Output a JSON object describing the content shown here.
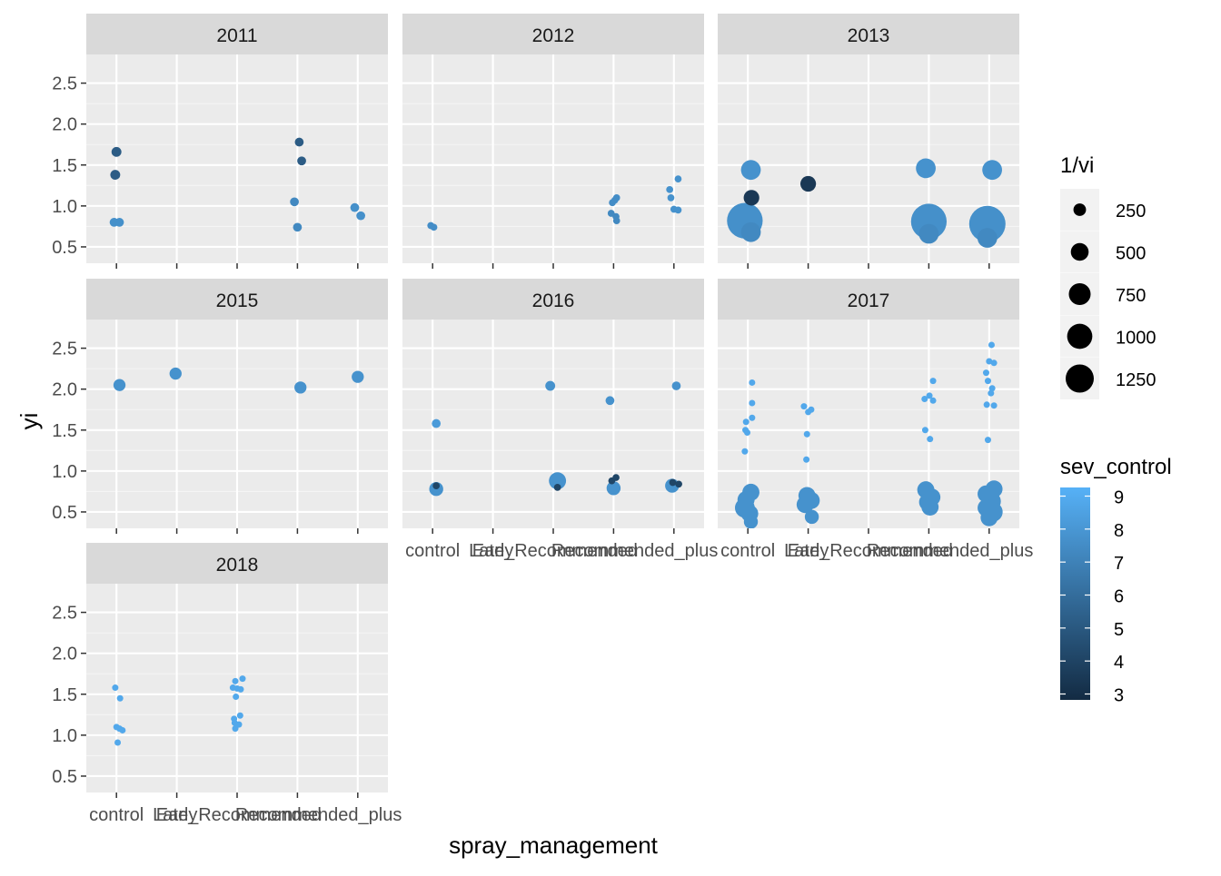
{
  "chart_data": {
    "type": "scatter",
    "facet_by": "year",
    "xlabel": "spray_management",
    "ylabel": "yi",
    "categories": [
      "control",
      "Early",
      "Late",
      "Recommended",
      "Recommended_plus"
    ],
    "tick_labels": [
      "control",
      "Early",
      "Late_Recommended",
      "Recommended_plus"
    ],
    "tick_label_style": "overlapping",
    "y_ticks": [
      "0.5",
      "1.0",
      "1.5",
      "2.0",
      "2.5"
    ],
    "ylim": [
      0.3,
      2.85
    ],
    "grid": true,
    "size_legend": {
      "title": "1/vi",
      "values": [
        250,
        500,
        750,
        1000,
        1250
      ],
      "labels": [
        "250",
        "500",
        "750",
        "1000",
        "1250"
      ]
    },
    "color_legend": {
      "title": "sev_control",
      "min": 3,
      "max": 9,
      "labels": [
        "3",
        "4",
        "5",
        "6",
        "7",
        "8",
        "9"
      ],
      "low_color": "#132B43",
      "high_color": "#56B1F7"
    },
    "panels": [
      {
        "title": "2011",
        "points": [
          {
            "x": 0.96,
            "y": 0.8,
            "size": 80,
            "color": 7.5
          },
          {
            "x": 1.05,
            "y": 0.8,
            "size": 80,
            "color": 7.5
          },
          {
            "x": 1.0,
            "y": 1.66,
            "size": 100,
            "color": 5.2
          },
          {
            "x": 0.98,
            "y": 1.38,
            "size": 100,
            "color": 5.2
          },
          {
            "x": 3.95,
            "y": 1.05,
            "size": 80,
            "color": 7.2
          },
          {
            "x": 4.0,
            "y": 0.74,
            "size": 80,
            "color": 7.2
          },
          {
            "x": 4.03,
            "y": 1.78,
            "size": 80,
            "color": 5.2
          },
          {
            "x": 4.07,
            "y": 1.55,
            "size": 80,
            "color": 5.2
          },
          {
            "x": 4.95,
            "y": 0.98,
            "size": 80,
            "color": 7.5
          },
          {
            "x": 5.05,
            "y": 0.88,
            "size": 80,
            "color": 7.5
          }
        ]
      },
      {
        "title": "2012",
        "points": [
          {
            "x": 0.97,
            "y": 0.76,
            "size": 50,
            "color": 7.4
          },
          {
            "x": 1.02,
            "y": 0.74,
            "size": 50,
            "color": 7.4
          },
          {
            "x": 3.96,
            "y": 0.91,
            "size": 50,
            "color": 7.2
          },
          {
            "x": 4.04,
            "y": 0.87,
            "size": 50,
            "color": 7.2
          },
          {
            "x": 4.05,
            "y": 0.82,
            "size": 50,
            "color": 7.2
          },
          {
            "x": 3.98,
            "y": 1.04,
            "size": 50,
            "color": 7.4
          },
          {
            "x": 4.02,
            "y": 1.07,
            "size": 50,
            "color": 7.4
          },
          {
            "x": 4.05,
            "y": 1.1,
            "size": 50,
            "color": 7.4
          },
          {
            "x": 4.93,
            "y": 1.2,
            "size": 50,
            "color": 7.6
          },
          {
            "x": 4.95,
            "y": 1.1,
            "size": 50,
            "color": 7.6
          },
          {
            "x": 5.07,
            "y": 1.33,
            "size": 50,
            "color": 7.6
          },
          {
            "x": 5.0,
            "y": 0.96,
            "size": 50,
            "color": 7.6
          },
          {
            "x": 5.07,
            "y": 0.95,
            "size": 50,
            "color": 7.6
          }
        ]
      },
      {
        "title": "2013",
        "points": [
          {
            "x": 0.95,
            "y": 0.82,
            "size": 1300,
            "color": 7.5
          },
          {
            "x": 1.05,
            "y": 1.44,
            "size": 400,
            "color": 7.6
          },
          {
            "x": 1.06,
            "y": 1.1,
            "size": 250,
            "color": 3.6
          },
          {
            "x": 1.05,
            "y": 0.68,
            "size": 400,
            "color": 7.2
          },
          {
            "x": 2.0,
            "y": 1.27,
            "size": 250,
            "color": 3.6
          },
          {
            "x": 3.95,
            "y": 1.46,
            "size": 400,
            "color": 7.6
          },
          {
            "x": 4.0,
            "y": 0.81,
            "size": 1300,
            "color": 7.5
          },
          {
            "x": 4.0,
            "y": 0.66,
            "size": 400,
            "color": 7.2
          },
          {
            "x": 4.97,
            "y": 0.78,
            "size": 1350,
            "color": 7.5
          },
          {
            "x": 5.05,
            "y": 1.44,
            "size": 400,
            "color": 7.6
          },
          {
            "x": 4.97,
            "y": 0.61,
            "size": 400,
            "color": 7.2
          }
        ]
      },
      {
        "title": "2015",
        "points": [
          {
            "x": 1.05,
            "y": 2.05,
            "size": 150,
            "color": 7.6
          },
          {
            "x": 1.98,
            "y": 2.19,
            "size": 150,
            "color": 7.6
          },
          {
            "x": 4.05,
            "y": 2.02,
            "size": 150,
            "color": 7.6
          },
          {
            "x": 5.0,
            "y": 2.15,
            "size": 150,
            "color": 7.6
          }
        ]
      },
      {
        "title": "2016",
        "points": [
          {
            "x": 1.06,
            "y": 1.58,
            "size": 80,
            "color": 8.0
          },
          {
            "x": 1.06,
            "y": 0.78,
            "size": 200,
            "color": 7.6
          },
          {
            "x": 1.06,
            "y": 0.82,
            "size": 50,
            "color": 4.2
          },
          {
            "x": 2.95,
            "y": 2.04,
            "size": 100,
            "color": 7.6
          },
          {
            "x": 3.07,
            "y": 0.88,
            "size": 300,
            "color": 7.6
          },
          {
            "x": 3.07,
            "y": 0.8,
            "size": 50,
            "color": 4.2
          },
          {
            "x": 3.94,
            "y": 1.86,
            "size": 80,
            "color": 7.6
          },
          {
            "x": 4.0,
            "y": 0.79,
            "size": 200,
            "color": 7.6
          },
          {
            "x": 3.97,
            "y": 0.88,
            "size": 50,
            "color": 4.2
          },
          {
            "x": 4.04,
            "y": 0.92,
            "size": 50,
            "color": 4.2
          },
          {
            "x": 4.97,
            "y": 0.82,
            "size": 200,
            "color": 7.6
          },
          {
            "x": 4.98,
            "y": 0.86,
            "size": 50,
            "color": 4.2
          },
          {
            "x": 5.08,
            "y": 0.84,
            "size": 50,
            "color": 4.2
          },
          {
            "x": 5.04,
            "y": 2.04,
            "size": 80,
            "color": 7.6
          }
        ]
      },
      {
        "title": "2017",
        "points": [
          {
            "x": 1.07,
            "y": 2.08,
            "size": 25,
            "color": 8.6
          },
          {
            "x": 1.07,
            "y": 1.83,
            "size": 25,
            "color": 8.6
          },
          {
            "x": 1.07,
            "y": 1.65,
            "size": 25,
            "color": 8.6
          },
          {
            "x": 0.97,
            "y": 1.6,
            "size": 25,
            "color": 8.6
          },
          {
            "x": 0.96,
            "y": 1.5,
            "size": 25,
            "color": 8.6
          },
          {
            "x": 0.99,
            "y": 1.47,
            "size": 25,
            "color": 8.6
          },
          {
            "x": 0.95,
            "y": 1.24,
            "size": 25,
            "color": 8.6
          },
          {
            "x": 1.05,
            "y": 0.74,
            "size": 300,
            "color": 7.6
          },
          {
            "x": 0.97,
            "y": 0.65,
            "size": 300,
            "color": 7.6
          },
          {
            "x": 0.95,
            "y": 0.55,
            "size": 400,
            "color": 7.6
          },
          {
            "x": 1.03,
            "y": 0.48,
            "size": 300,
            "color": 7.6
          },
          {
            "x": 1.05,
            "y": 0.38,
            "size": 200,
            "color": 7.6
          },
          {
            "x": 1.93,
            "y": 1.79,
            "size": 25,
            "color": 8.6
          },
          {
            "x": 2.05,
            "y": 1.75,
            "size": 25,
            "color": 8.6
          },
          {
            "x": 2.0,
            "y": 1.72,
            "size": 25,
            "color": 8.6
          },
          {
            "x": 1.98,
            "y": 1.45,
            "size": 25,
            "color": 8.6
          },
          {
            "x": 1.97,
            "y": 1.14,
            "size": 25,
            "color": 8.6
          },
          {
            "x": 1.98,
            "y": 0.7,
            "size": 300,
            "color": 7.6
          },
          {
            "x": 2.05,
            "y": 0.64,
            "size": 300,
            "color": 7.6
          },
          {
            "x": 1.95,
            "y": 0.59,
            "size": 300,
            "color": 7.6
          },
          {
            "x": 2.06,
            "y": 0.44,
            "size": 200,
            "color": 7.6
          },
          {
            "x": 3.93,
            "y": 1.88,
            "size": 25,
            "color": 8.6
          },
          {
            "x": 4.01,
            "y": 1.92,
            "size": 25,
            "color": 8.6
          },
          {
            "x": 4.07,
            "y": 2.1,
            "size": 25,
            "color": 8.6
          },
          {
            "x": 4.07,
            "y": 1.86,
            "size": 25,
            "color": 8.6
          },
          {
            "x": 3.94,
            "y": 1.5,
            "size": 25,
            "color": 8.6
          },
          {
            "x": 4.02,
            "y": 1.39,
            "size": 25,
            "color": 8.6
          },
          {
            "x": 3.95,
            "y": 0.77,
            "size": 300,
            "color": 7.6
          },
          {
            "x": 4.05,
            "y": 0.68,
            "size": 300,
            "color": 7.6
          },
          {
            "x": 3.98,
            "y": 0.62,
            "size": 300,
            "color": 7.6
          },
          {
            "x": 4.02,
            "y": 0.56,
            "size": 300,
            "color": 7.6
          },
          {
            "x": 5.04,
            "y": 2.54,
            "size": 25,
            "color": 8.6
          },
          {
            "x": 5.0,
            "y": 2.34,
            "size": 25,
            "color": 8.6
          },
          {
            "x": 5.08,
            "y": 2.32,
            "size": 25,
            "color": 8.6
          },
          {
            "x": 4.95,
            "y": 2.2,
            "size": 25,
            "color": 8.6
          },
          {
            "x": 4.98,
            "y": 2.1,
            "size": 25,
            "color": 8.6
          },
          {
            "x": 5.05,
            "y": 2.01,
            "size": 25,
            "color": 8.6
          },
          {
            "x": 5.03,
            "y": 1.95,
            "size": 25,
            "color": 8.6
          },
          {
            "x": 4.96,
            "y": 1.81,
            "size": 25,
            "color": 8.6
          },
          {
            "x": 5.08,
            "y": 1.8,
            "size": 25,
            "color": 8.6
          },
          {
            "x": 4.98,
            "y": 1.38,
            "size": 25,
            "color": 8.6
          },
          {
            "x": 5.08,
            "y": 0.78,
            "size": 300,
            "color": 7.6
          },
          {
            "x": 4.95,
            "y": 0.72,
            "size": 300,
            "color": 7.6
          },
          {
            "x": 5.03,
            "y": 0.63,
            "size": 400,
            "color": 7.6
          },
          {
            "x": 4.95,
            "y": 0.55,
            "size": 300,
            "color": 7.6
          },
          {
            "x": 5.06,
            "y": 0.5,
            "size": 400,
            "color": 7.6
          },
          {
            "x": 5.0,
            "y": 0.43,
            "size": 300,
            "color": 7.6
          }
        ]
      },
      {
        "title": "2018",
        "points": [
          {
            "x": 0.98,
            "y": 1.58,
            "size": 40,
            "color": 8.6
          },
          {
            "x": 1.06,
            "y": 1.45,
            "size": 40,
            "color": 8.6
          },
          {
            "x": 1.0,
            "y": 1.1,
            "size": 40,
            "color": 8.6
          },
          {
            "x": 1.05,
            "y": 1.08,
            "size": 40,
            "color": 8.6
          },
          {
            "x": 1.1,
            "y": 1.06,
            "size": 40,
            "color": 8.6
          },
          {
            "x": 1.02,
            "y": 0.91,
            "size": 40,
            "color": 8.6
          },
          {
            "x": 2.97,
            "y": 1.66,
            "size": 40,
            "color": 8.6
          },
          {
            "x": 3.09,
            "y": 1.69,
            "size": 40,
            "color": 8.6
          },
          {
            "x": 2.93,
            "y": 1.58,
            "size": 40,
            "color": 8.6
          },
          {
            "x": 3.0,
            "y": 1.57,
            "size": 40,
            "color": 8.6
          },
          {
            "x": 3.06,
            "y": 1.56,
            "size": 40,
            "color": 8.6
          },
          {
            "x": 2.98,
            "y": 1.47,
            "size": 40,
            "color": 8.6
          },
          {
            "x": 3.05,
            "y": 1.24,
            "size": 40,
            "color": 8.6
          },
          {
            "x": 2.95,
            "y": 1.2,
            "size": 40,
            "color": 8.6
          },
          {
            "x": 2.96,
            "y": 1.15,
            "size": 40,
            "color": 8.6
          },
          {
            "x": 3.03,
            "y": 1.13,
            "size": 40,
            "color": 8.6
          },
          {
            "x": 2.97,
            "y": 1.08,
            "size": 40,
            "color": 8.6
          }
        ]
      }
    ]
  }
}
